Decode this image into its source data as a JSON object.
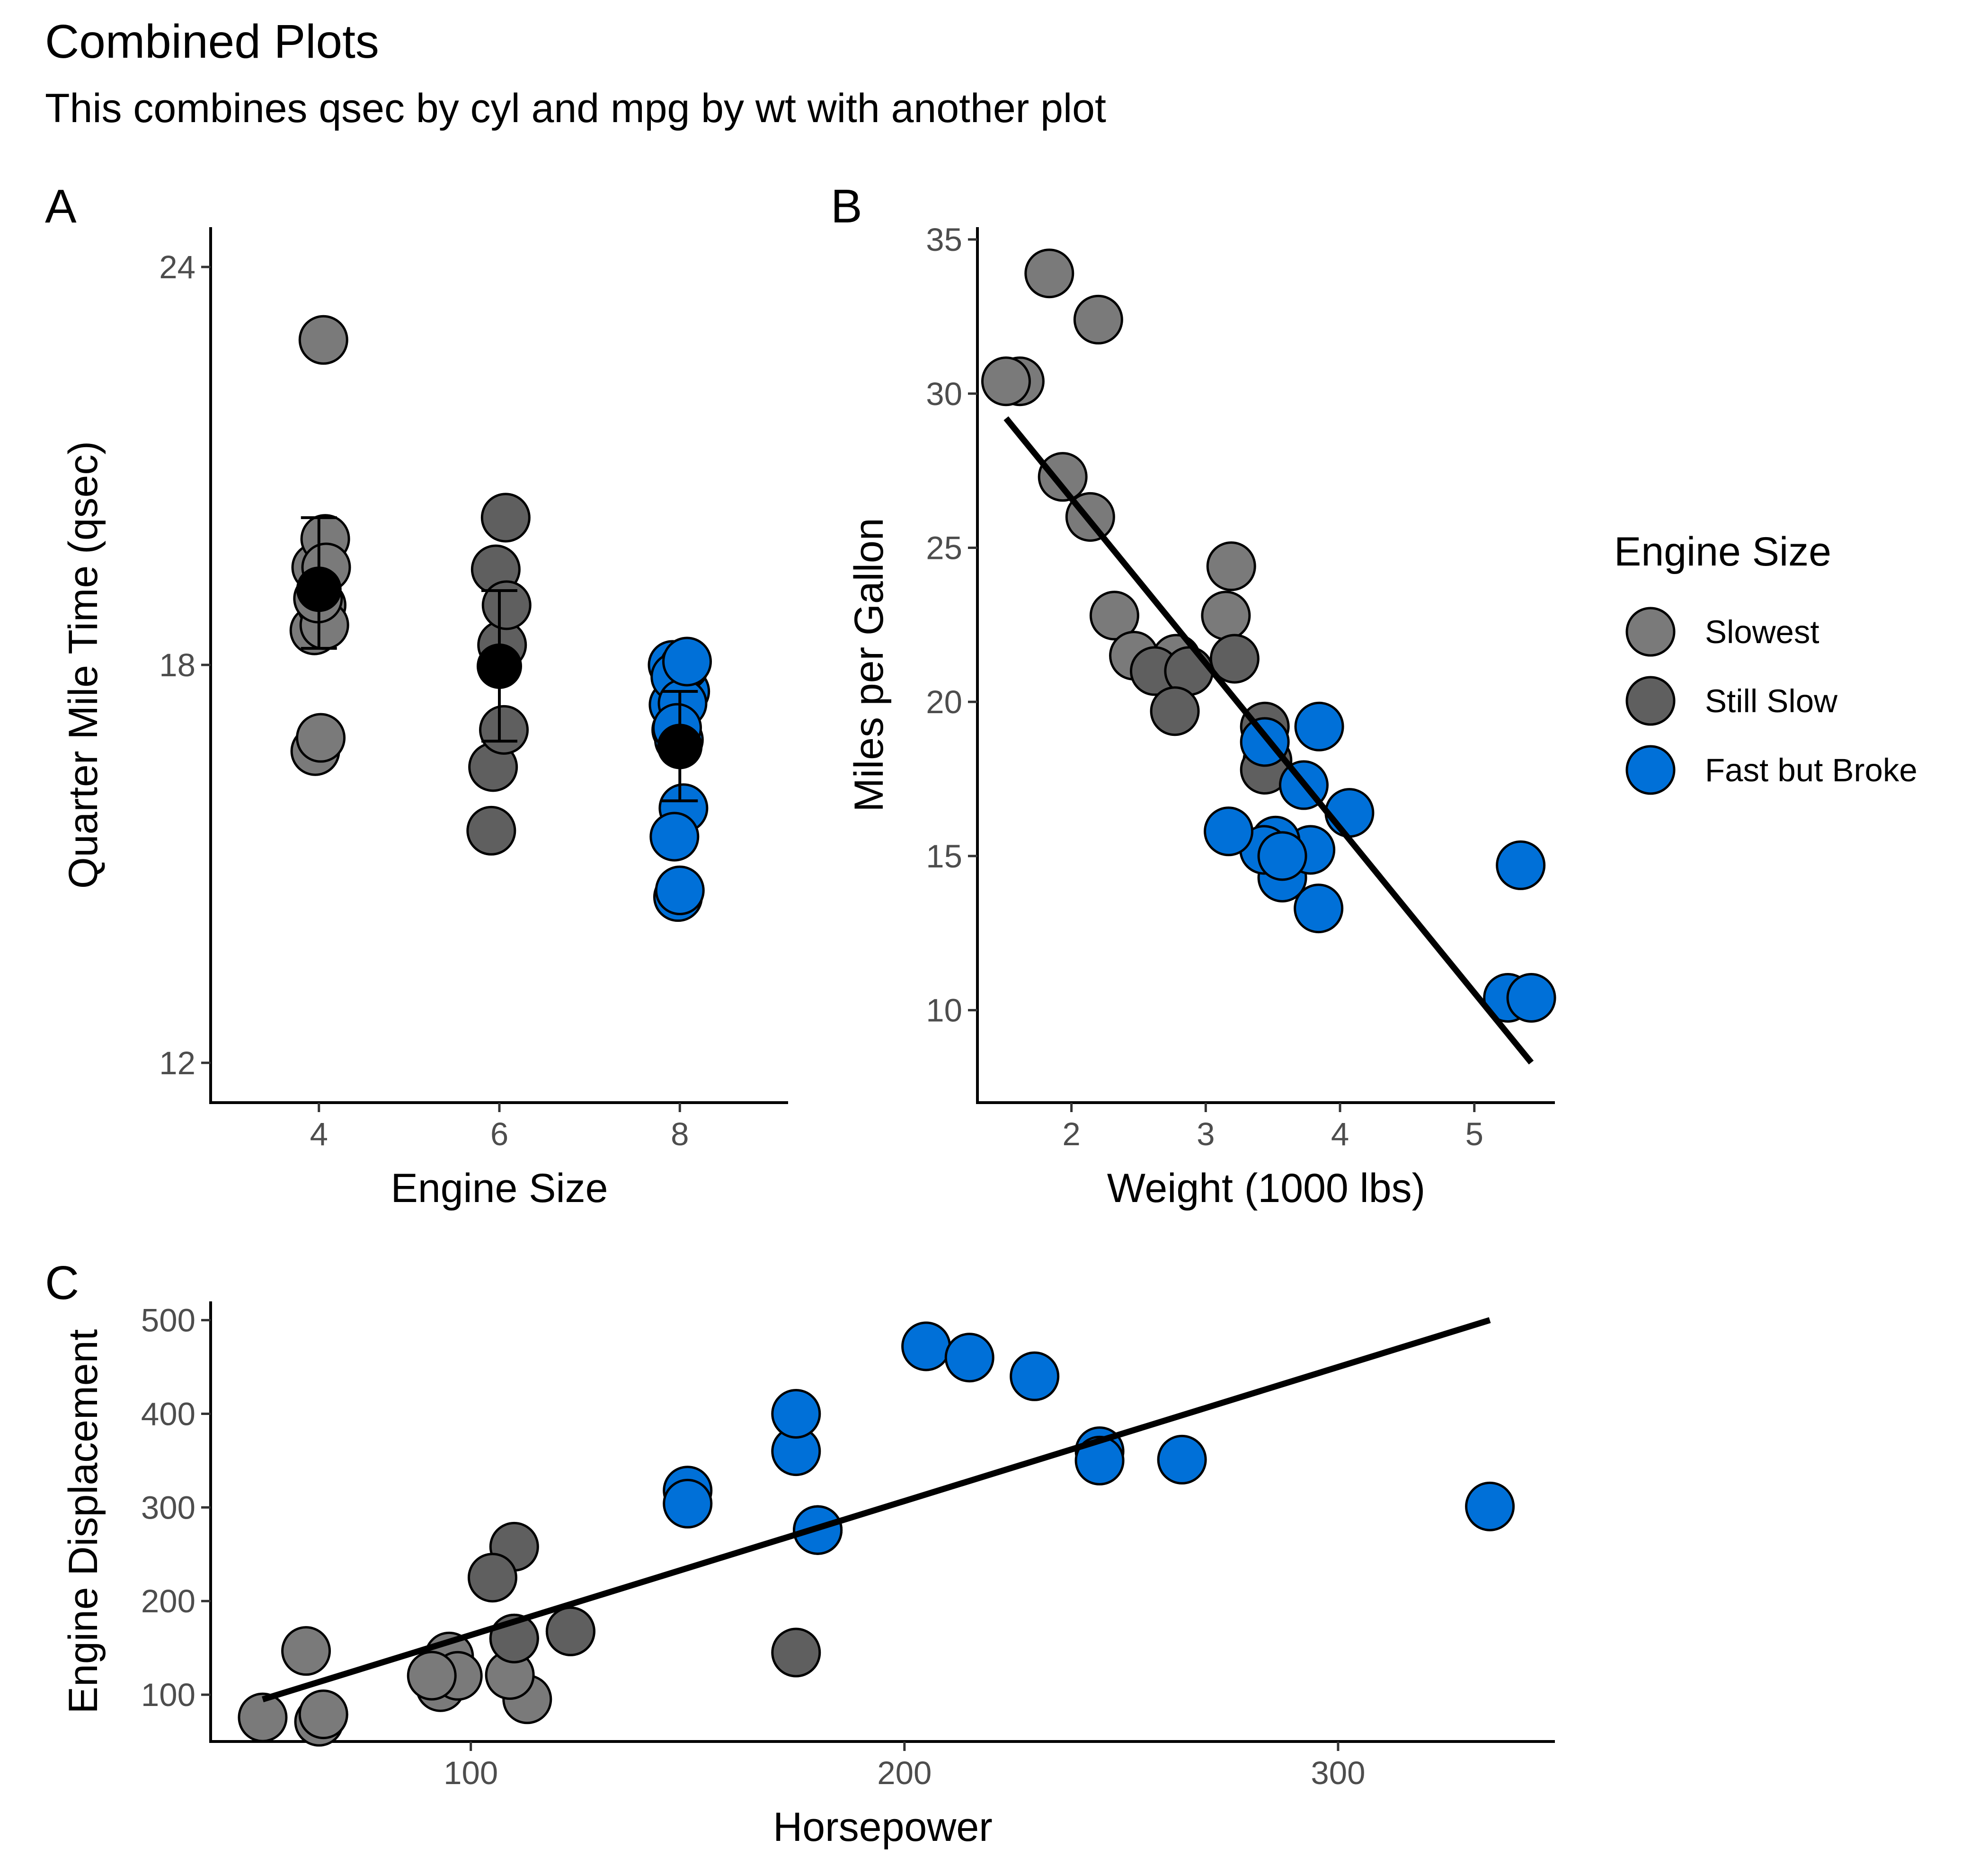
{
  "title": "Combined Plots",
  "subtitle": "This combines qsec by cyl and mpg by wt with another plot",
  "colors": {
    "Slowest": "#7a7a7a",
    "Still Slow": "#5f5f5f",
    "Fast but Broke": "#0070d8",
    "summary": "#000000"
  },
  "legend": {
    "title": "Engine Size",
    "items": [
      {
        "label": "Slowest",
        "color": "#7a7a7a"
      },
      {
        "label": "Still Slow",
        "color": "#5f5f5f"
      },
      {
        "label": "Fast but Broke",
        "color": "#0070d8"
      }
    ]
  },
  "chart_data": [
    {
      "tag": "A",
      "type": "scatter",
      "xlabel": "Engine Size",
      "ylabel": "Quarter Mile Time (qsec)",
      "xlim": [
        2.8,
        9.2
      ],
      "ylim": [
        11.4,
        24.6
      ],
      "xticks": [
        4,
        6,
        8
      ],
      "yticks": [
        12,
        18,
        24
      ],
      "series": [
        {
          "name": "Slowest",
          "points": [
            [
              4.04,
              18.61
            ],
            [
              3.97,
              19.47
            ],
            [
              4.05,
              22.9
            ],
            [
              4.07,
              19.9
            ],
            [
              3.95,
              18.52
            ],
            [
              4.08,
              19.47
            ],
            [
              4.03,
              18.9
            ],
            [
              3.96,
              16.7
            ],
            [
              4.02,
              16.9
            ],
            [
              4.06,
              18.6
            ],
            [
              3.99,
              19.0
            ]
          ]
        },
        {
          "name": "Still Slow",
          "points": [
            [
              5.93,
              16.46
            ],
            [
              6.05,
              17.02
            ],
            [
              5.96,
              19.44
            ],
            [
              6.07,
              20.22
            ],
            [
              6.03,
              18.3
            ],
            [
              6.08,
              18.9
            ],
            [
              5.91,
              15.5
            ]
          ]
        },
        {
          "name": "Fast but Broke",
          "points": [
            [
              7.96,
              17.02
            ],
            [
              8.04,
              15.84
            ],
            [
              7.93,
              17.4
            ],
            [
              8.06,
              17.6
            ],
            [
              7.92,
              18.0
            ],
            [
              8.05,
              17.98
            ],
            [
              7.95,
              17.82
            ],
            [
              8.03,
              17.42
            ],
            [
              7.98,
              14.5
            ],
            [
              7.94,
              15.41
            ],
            [
              8.0,
              14.6
            ],
            [
              7.99,
              16.87
            ],
            [
              7.97,
              17.05
            ],
            [
              8.08,
              18.05
            ]
          ]
        }
      ],
      "summary": [
        {
          "x": 4,
          "mean": 19.14,
          "lower": 18.25,
          "upper": 20.22
        },
        {
          "x": 6,
          "mean": 17.98,
          "lower": 16.85,
          "upper": 19.12
        },
        {
          "x": 8,
          "mean": 16.77,
          "lower": 15.95,
          "upper": 17.6
        }
      ]
    },
    {
      "tag": "B",
      "type": "scatter",
      "xlabel": "Weight (1000 lbs)",
      "ylabel": "Miles per Gallon",
      "xlim": [
        1.3,
        5.6
      ],
      "ylim": [
        7.0,
        35.4
      ],
      "xticks": [
        2,
        3,
        4,
        5
      ],
      "yticks": [
        10,
        15,
        20,
        25,
        30,
        35
      ],
      "fit": {
        "x": [
          1.513,
          5.424
        ],
        "y": [
          29.2,
          8.3
        ]
      },
      "series": [
        {
          "name": "Slowest",
          "points": [
            [
              2.32,
              22.8
            ],
            [
              3.19,
              24.4
            ],
            [
              3.15,
              22.8
            ],
            [
              2.2,
              32.4
            ],
            [
              1.615,
              30.4
            ],
            [
              1.835,
              33.9
            ],
            [
              2.465,
              21.5
            ],
            [
              1.935,
              27.3
            ],
            [
              2.14,
              26.0
            ],
            [
              1.513,
              30.4
            ],
            [
              2.78,
              21.4
            ]
          ]
        },
        {
          "name": "Still Slow",
          "points": [
            [
              2.62,
              21.0
            ],
            [
              2.875,
              21.0
            ],
            [
              3.215,
              21.4
            ],
            [
              3.46,
              18.1
            ],
            [
              3.44,
              19.2
            ],
            [
              3.44,
              17.8
            ],
            [
              2.77,
              19.7
            ]
          ]
        },
        {
          "name": "Fast but Broke",
          "points": [
            [
              3.44,
              18.7
            ],
            [
              3.57,
              14.3
            ],
            [
              4.07,
              16.4
            ],
            [
              3.73,
              17.3
            ],
            [
              3.78,
              15.2
            ],
            [
              5.25,
              10.4
            ],
            [
              5.424,
              10.4
            ],
            [
              5.345,
              14.7
            ],
            [
              3.52,
              15.5
            ],
            [
              3.435,
              15.2
            ],
            [
              3.84,
              13.3
            ],
            [
              3.845,
              19.2
            ],
            [
              3.17,
              15.8
            ],
            [
              3.57,
              15.0
            ]
          ]
        }
      ]
    },
    {
      "tag": "C",
      "type": "scatter",
      "xlabel": "Horsepower",
      "ylabel": "Engine Displacement",
      "xlim": [
        40,
        350
      ],
      "ylim": [
        50,
        520
      ],
      "xticks": [
        100,
        200,
        300
      ],
      "yticks": [
        100,
        200,
        300,
        400,
        500
      ],
      "fit": {
        "x": [
          52,
          335
        ],
        "y": [
          95,
          500
        ]
      },
      "series": [
        {
          "name": "Slowest",
          "points": [
            [
              93,
              108
            ],
            [
              62,
              146.7
            ],
            [
              95,
              140.8
            ],
            [
              66,
              78.7
            ],
            [
              52,
              75.7
            ],
            [
              65,
              71.1
            ],
            [
              97,
              120.1
            ],
            [
              66,
              79
            ],
            [
              91,
              120.3
            ],
            [
              113,
              95.1
            ],
            [
              109,
              121
            ]
          ]
        },
        {
          "name": "Still Slow",
          "points": [
            [
              110,
              160
            ],
            [
              110,
              160
            ],
            [
              110,
              258
            ],
            [
              105,
              225
            ],
            [
              123,
              167.6
            ],
            [
              123,
              167.6
            ],
            [
              175,
              145
            ]
          ]
        },
        {
          "name": "Fast but Broke",
          "points": [
            [
              175,
              360
            ],
            [
              245,
              360
            ],
            [
              180,
              275.8
            ],
            [
              180,
              275.8
            ],
            [
              180,
              275.8
            ],
            [
              205,
              472
            ],
            [
              215,
              460
            ],
            [
              230,
              440
            ],
            [
              150,
              318
            ],
            [
              150,
              304
            ],
            [
              245,
              350
            ],
            [
              175,
              400
            ],
            [
              264,
              351
            ],
            [
              335,
              301
            ]
          ]
        }
      ]
    }
  ]
}
